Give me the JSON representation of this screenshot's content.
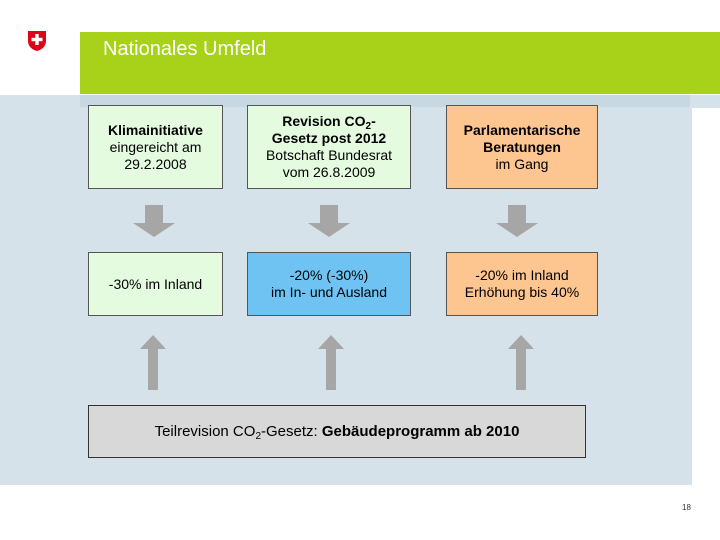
{
  "header": {
    "title": "Nationales Umfeld"
  },
  "row1": {
    "col1": {
      "line1": "Klimainitiative",
      "line2": "eingereicht am",
      "line3": "29.2.2008"
    },
    "col2": {
      "title_pre": "Revision CO",
      "title_sub": "2",
      "title_post": "-",
      "line2": "Gesetz post 2012",
      "line3": "Botschaft Bundesrat",
      "line4": "vom 26.8.2009"
    },
    "col3": {
      "line1": "Parlamentarische",
      "line2": "Beratungen",
      "line3": "im Gang"
    }
  },
  "row2": {
    "col1": {
      "line1": "-30% im Inland"
    },
    "col2": {
      "line1": "-20% (-30%)",
      "line2": "im In- und Ausland"
    },
    "col3": {
      "line1": "-20% im Inland",
      "line2": "Erhöhung bis 40%"
    }
  },
  "bottom": {
    "pre": "Teilrevision CO",
    "sub": "2",
    "mid": "-Gesetz: ",
    "bold": "Gebäudeprogramm ab 2010"
  },
  "page_number": "18",
  "colors": {
    "header": "#a8d21a",
    "stage": "#d5e2ea",
    "box_green": "#e4fbe0",
    "box_blue": "#6ec3f2",
    "box_peach": "#fdc590",
    "box_grey": "#d8d8d8",
    "arrow": "#a6a6a6"
  }
}
